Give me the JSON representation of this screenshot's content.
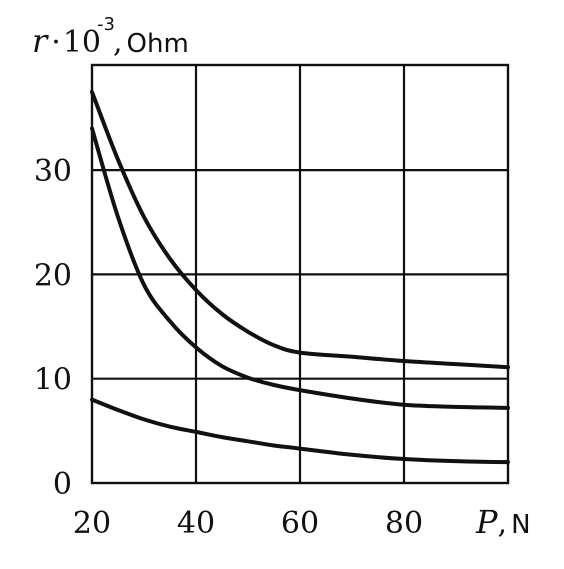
{
  "chart_data": {
    "type": "line",
    "x": [
      20,
      25,
      30,
      35,
      40,
      45,
      50,
      55,
      60,
      70,
      80,
      90,
      100
    ],
    "series": [
      {
        "values": [
          37.5,
          31,
          25.5,
          21.5,
          18.5,
          16.2,
          14.5,
          13.2,
          12.5,
          12.1,
          11.7,
          11.4,
          11.1
        ]
      },
      {
        "values": [
          34,
          25.5,
          19,
          15.5,
          13,
          11.2,
          10.1,
          9.4,
          8.9,
          8.1,
          7.5,
          7.3,
          7.2
        ]
      },
      {
        "values": [
          8,
          7,
          6.1,
          5.4,
          4.9,
          4.4,
          4.0,
          3.6,
          3.3,
          2.7,
          2.3,
          2.1,
          2.0
        ]
      }
    ],
    "xlim": [
      20,
      100
    ],
    "ylim": [
      0,
      40
    ],
    "x_ticks": [
      "20",
      "40",
      "60",
      "80"
    ],
    "y_ticks": [
      "0",
      "10",
      "20",
      "30"
    ],
    "xlabel": {
      "var": "P",
      "sep": ",",
      "unit": "N"
    },
    "ylabel": {
      "var": "r",
      "dot": "·",
      "base": "10",
      "exp": "-3",
      "sep": ",",
      "unit": "Ohm"
    },
    "grid": true
  }
}
